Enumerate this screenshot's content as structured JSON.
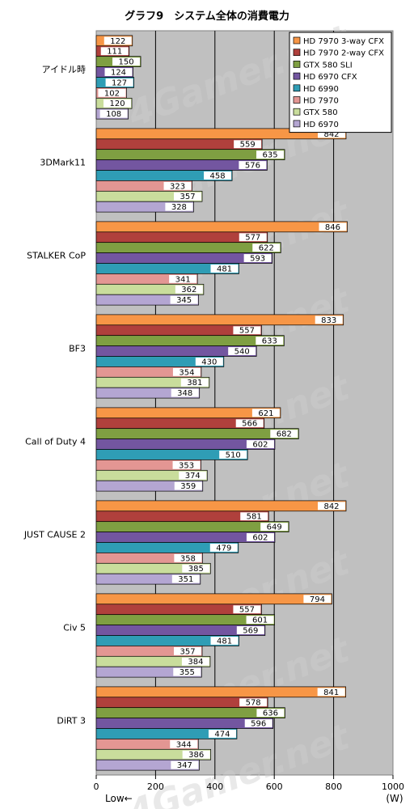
{
  "chart_data": {
    "type": "bar",
    "orientation": "horizontal",
    "title": "グラフ9　システム全体の消費電力",
    "categories": [
      "アイドル時",
      "3DMark11",
      "STALKER CoP",
      "BF3",
      "Call of Duty 4",
      "JUST CAUSE 2",
      "Civ 5",
      "DiRT 3"
    ],
    "series": [
      {
        "name": "HD 7970 3-way CFX",
        "color": "#f79646",
        "values": [
          122,
          842,
          846,
          833,
          621,
          842,
          794,
          841
        ]
      },
      {
        "name": "HD 7970 2-way CFX",
        "color": "#b0403c",
        "values": [
          111,
          559,
          577,
          557,
          566,
          581,
          557,
          578
        ]
      },
      {
        "name": "GTX 580 SLI",
        "color": "#7f9f42",
        "values": [
          150,
          635,
          622,
          633,
          682,
          649,
          601,
          636
        ]
      },
      {
        "name": "HD 6970 CFX",
        "color": "#7356a0",
        "values": [
          124,
          576,
          593,
          540,
          602,
          602,
          569,
          596
        ]
      },
      {
        "name": "HD 6990",
        "color": "#2f9db5",
        "values": [
          127,
          458,
          481,
          430,
          510,
          479,
          481,
          474
        ]
      },
      {
        "name": "HD 7970",
        "color": "#e39693",
        "values": [
          102,
          323,
          341,
          354,
          353,
          358,
          357,
          344
        ]
      },
      {
        "name": "GTX 580",
        "color": "#c9dd9c",
        "values": [
          120,
          357,
          362,
          381,
          374,
          385,
          384,
          386
        ]
      },
      {
        "name": "HD 6970",
        "color": "#b4a6d2",
        "values": [
          108,
          328,
          345,
          348,
          359,
          351,
          355,
          347
        ]
      }
    ],
    "xlim": [
      0,
      1000
    ],
    "xticks": [
      0,
      200,
      400,
      600,
      800,
      1000
    ],
    "xlabel_left": "Low←",
    "xlabel_right": "(W)",
    "grid": true,
    "legend_position": "top-right",
    "watermark": "4Gamer.net"
  }
}
